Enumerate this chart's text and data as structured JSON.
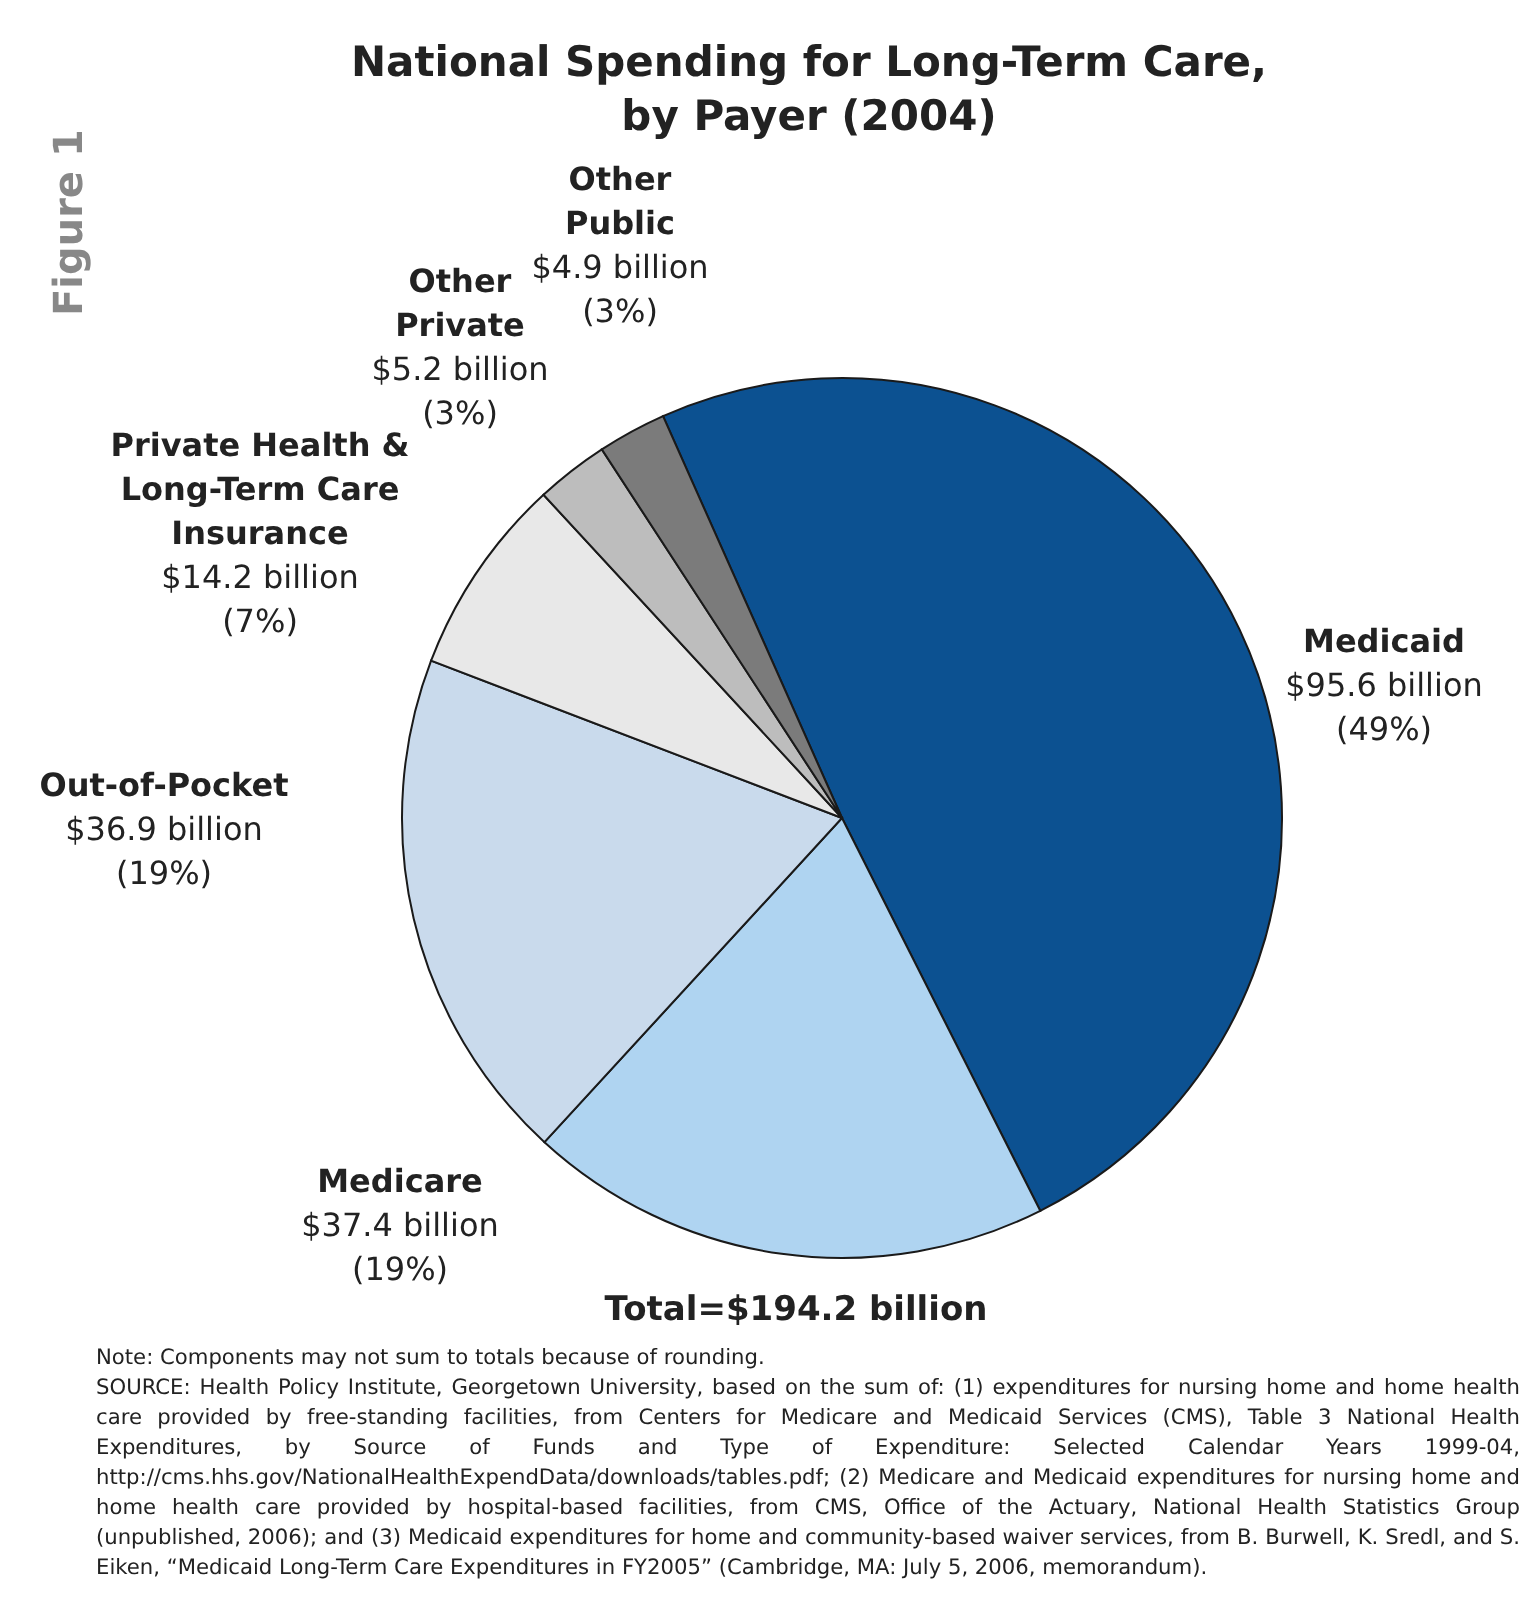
{
  "chart_data": {
    "type": "pie",
    "title": "National Spending for Long-Term Care,\nby Payer (2004)",
    "categories": [
      "Medicaid",
      "Medicare",
      "Out-of-Pocket",
      "Private Health &\nLong-Term Care\nInsurance",
      "Other\nPrivate",
      "Other\nPublic"
    ],
    "values": [
      95.6,
      37.4,
      36.9,
      14.2,
      5.2,
      4.9
    ],
    "colors": [
      "#0c5191",
      "#afd4f1",
      "#c9daec",
      "#e8e8e8",
      "#bdbdbd",
      "#7b7b7b"
    ],
    "value_labels": [
      "$95.6 billion",
      "$37.4 billion",
      "$36.9 billion",
      "$14.2 billion",
      "$5.2 billion",
      "$4.9 billion"
    ],
    "legend": false,
    "annotations": [
      "Figure 1",
      "Total=$194.2 billion",
      {
        "text": "(49%)",
        "x": "Medicaid"
      },
      {
        "text": "(19%)",
        "x": "Medicare"
      },
      {
        "text": "(19%)",
        "x": "Out-of-Pocket"
      },
      {
        "text": "(7%)",
        "x": "Private Health &\nLong-Term Care\nInsurance"
      },
      {
        "text": "(3%)",
        "x": "Other\nPrivate"
      },
      {
        "text": "(3%)",
        "x": "Other\nPublic"
      },
      "Note: Components may not sum to totals because of rounding.",
      "SOURCE:  Health Policy Institute, Georgetown University, based on the sum of: (1) expenditures for nursing home and home health care provided by free-standing facilities, from Centers for Medicare and Medicaid Services (CMS), Table 3 National Health Expenditures, by Source of Funds and Type of Expenditure: Selected Calendar Years 1999-04, http://cms.hhs.gov/NationalHealthExpendData/downloads/tables.pdf; (2) Medicare and Medicaid expenditures for nursing home and home health care provided by hospital-based facilities, from CMS, Office of the Actuary, National Health Statistics Group (unpublished, 2006); and (3) Medicaid expenditures for home and community-based waiver services, from B. Burwell, K. Sredl, and S. Eiken, “Medicaid Long-Term Care Expenditures in FY2005” (Cambridge, MA: July 5, 2006, memorandum)."
    ]
  }
}
